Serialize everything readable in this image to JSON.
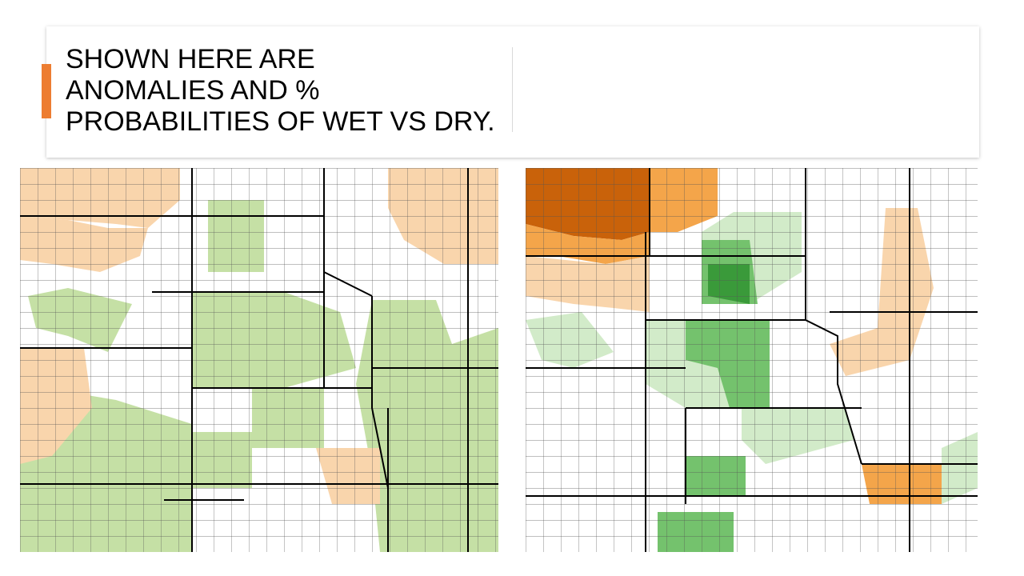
{
  "header": {
    "title_lines": [
      "SHOWN HERE ARE",
      "ANOMALIES AND %",
      "PROBABILITIES OF WET VS DRY."
    ]
  }
}
